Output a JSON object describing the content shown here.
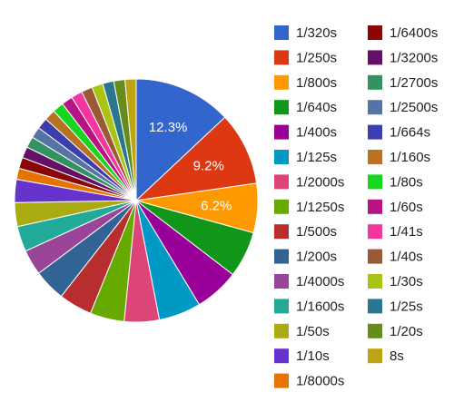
{
  "chart_data": {
    "type": "pie",
    "title": "",
    "legend_position": "right",
    "slices": [
      {
        "label": "1/320s",
        "value": 12.3,
        "color": "#3366cc",
        "data_label": "12.3%"
      },
      {
        "label": "1/250s",
        "value": 9.2,
        "color": "#dc3912",
        "data_label": "9.2%"
      },
      {
        "label": "1/800s",
        "value": 6.2,
        "color": "#ff9900",
        "data_label": "6.2%"
      },
      {
        "label": "1/640s",
        "value": 5.8,
        "color": "#109618"
      },
      {
        "label": "1/400s",
        "value": 5.6,
        "color": "#990099"
      },
      {
        "label": "1/125s",
        "value": 5.3,
        "color": "#0099c6"
      },
      {
        "label": "1/2000s",
        "value": 4.4,
        "color": "#dd4477"
      },
      {
        "label": "1/1250s",
        "value": 4.3,
        "color": "#66aa00"
      },
      {
        "label": "1/500s",
        "value": 4.2,
        "color": "#b82e2e"
      },
      {
        "label": "1/200s",
        "value": 4.0,
        "color": "#316395"
      },
      {
        "label": "1/4000s",
        "value": 3.2,
        "color": "#994499"
      },
      {
        "label": "1/1600s",
        "value": 3.2,
        "color": "#22aa99"
      },
      {
        "label": "1/50s",
        "value": 3.0,
        "color": "#aaaa11"
      },
      {
        "label": "1/10s",
        "value": 2.9,
        "color": "#6633cc"
      },
      {
        "label": "1/8000s",
        "value": 1.4,
        "color": "#e67300"
      },
      {
        "label": "1/6400s",
        "value": 1.4,
        "color": "#8b0707"
      },
      {
        "label": "1/3200s",
        "value": 1.4,
        "color": "#651067"
      },
      {
        "label": "1/2700s",
        "value": 1.4,
        "color": "#329262"
      },
      {
        "label": "1/2500s",
        "value": 1.4,
        "color": "#5574a6"
      },
      {
        "label": "1/664s",
        "value": 1.4,
        "color": "#3b3eac"
      },
      {
        "label": "1/160s",
        "value": 1.4,
        "color": "#b77322"
      },
      {
        "label": "1/80s",
        "value": 1.4,
        "color": "#16d620"
      },
      {
        "label": "1/60s",
        "value": 1.4,
        "color": "#b91383"
      },
      {
        "label": "1/41s",
        "value": 1.4,
        "color": "#f4359e"
      },
      {
        "label": "1/40s",
        "value": 1.4,
        "color": "#9c5935"
      },
      {
        "label": "1/30s",
        "value": 1.4,
        "color": "#a9c413"
      },
      {
        "label": "1/25s",
        "value": 1.4,
        "color": "#2a778d"
      },
      {
        "label": "1/20s",
        "value": 1.4,
        "color": "#668d1c"
      },
      {
        "label": "8s",
        "value": 1.4,
        "color": "#bea413"
      }
    ]
  }
}
